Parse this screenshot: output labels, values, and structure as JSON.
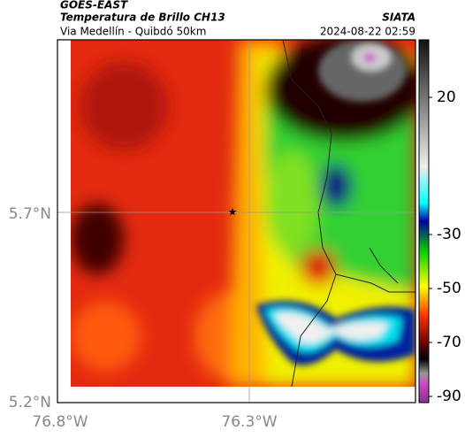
{
  "header": {
    "source": "GOES-EAST",
    "title": "Temperatura de Brillo CH13",
    "subtitle": "Via Medellín - Quibdó 50km",
    "credit": "SIATA",
    "timestamp": "2024-08-22 02:59"
  },
  "map": {
    "lat_labels": [
      "5.7°N",
      "5.2°N"
    ],
    "lon_labels": [
      "76.8°W",
      "76.3°W"
    ]
  },
  "colorbar": {
    "ticks": [
      20,
      -30,
      -50,
      -70,
      -90
    ]
  }
}
